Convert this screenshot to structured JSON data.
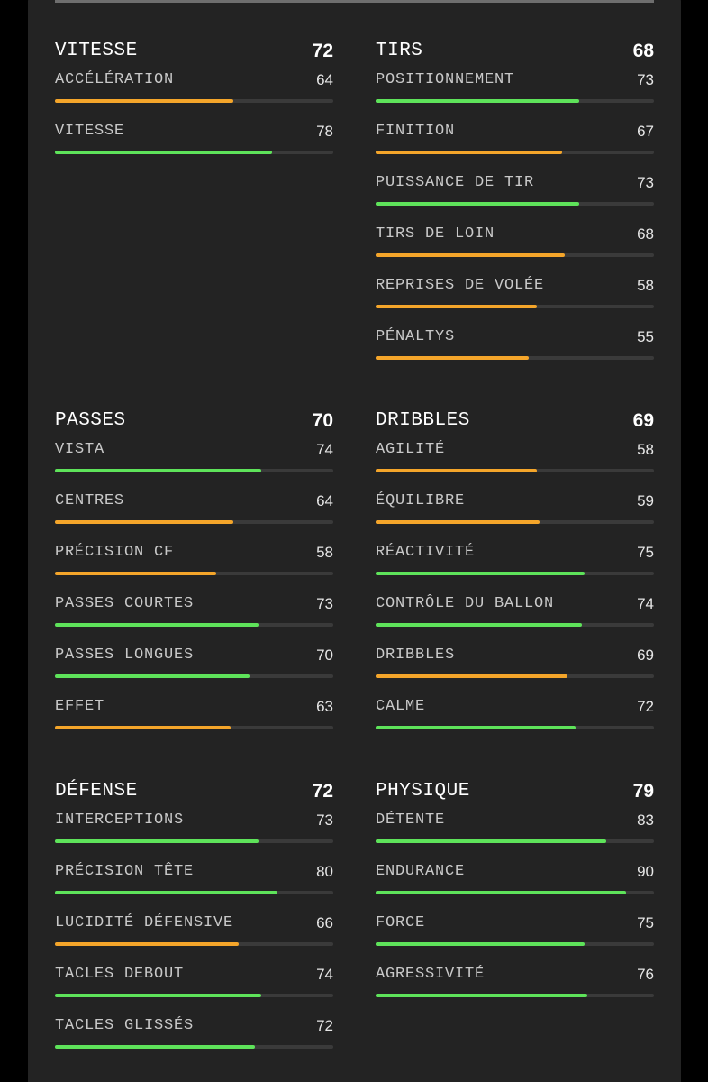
{
  "colors": {
    "high": "#5ee35a",
    "mid": "#f4a52a",
    "track": "#3a3a3a"
  },
  "groups": [
    {
      "title": "VITESSE",
      "value": "72",
      "stats": [
        {
          "label": "ACCÉLÉRATION",
          "value": "64"
        },
        {
          "label": "VITESSE",
          "value": "78"
        }
      ]
    },
    {
      "title": "TIRS",
      "value": "68",
      "stats": [
        {
          "label": "POSITIONNEMENT",
          "value": "73"
        },
        {
          "label": "FINITION",
          "value": "67"
        },
        {
          "label": "PUISSANCE DE TIR",
          "value": "73"
        },
        {
          "label": "TIRS DE LOIN",
          "value": "68"
        },
        {
          "label": "REPRISES DE VOLÉE",
          "value": "58"
        },
        {
          "label": "PÉNALTYS",
          "value": "55"
        }
      ]
    },
    {
      "title": "PASSES",
      "value": "70",
      "stats": [
        {
          "label": "VISTA",
          "value": "74"
        },
        {
          "label": "CENTRES",
          "value": "64"
        },
        {
          "label": "PRÉCISION CF",
          "value": "58"
        },
        {
          "label": "PASSES COURTES",
          "value": "73"
        },
        {
          "label": "PASSES LONGUES",
          "value": "70"
        },
        {
          "label": "EFFET",
          "value": "63"
        }
      ]
    },
    {
      "title": "DRIBBLES",
      "value": "69",
      "stats": [
        {
          "label": "AGILITÉ",
          "value": "58"
        },
        {
          "label": "ÉQUILIBRE",
          "value": "59"
        },
        {
          "label": "RÉACTIVITÉ",
          "value": "75"
        },
        {
          "label": "CONTRÔLE DU BALLON",
          "value": "74"
        },
        {
          "label": "DRIBBLES",
          "value": "69"
        },
        {
          "label": "CALME",
          "value": "72"
        }
      ]
    },
    {
      "title": "DÉFENSE",
      "value": "72",
      "stats": [
        {
          "label": "INTERCEPTIONS",
          "value": "73"
        },
        {
          "label": "PRÉCISION TÊTE",
          "value": "80"
        },
        {
          "label": "LUCIDITÉ DÉFENSIVE",
          "value": "66"
        },
        {
          "label": "TACLES DEBOUT",
          "value": "74"
        },
        {
          "label": "TACLES GLISSÉS",
          "value": "72"
        }
      ]
    },
    {
      "title": "PHYSIQUE",
      "value": "79",
      "stats": [
        {
          "label": "DÉTENTE",
          "value": "83"
        },
        {
          "label": "ENDURANCE",
          "value": "90"
        },
        {
          "label": "FORCE",
          "value": "75"
        },
        {
          "label": "AGRESSIVITÉ",
          "value": "76"
        }
      ]
    }
  ]
}
